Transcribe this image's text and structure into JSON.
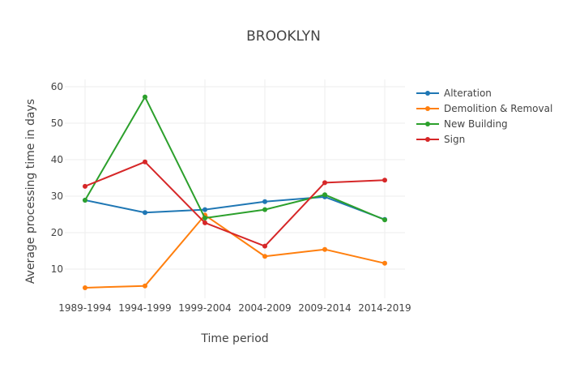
{
  "chart_data": {
    "type": "line",
    "title": "BROOKLYN",
    "xlabel": "Time period",
    "ylabel": "Average processing time in days",
    "categories": [
      "1989-1994",
      "1994-1999",
      "1999-2004",
      "2004-2009",
      "2009-2014",
      "2014-2019"
    ],
    "ylim": [
      2,
      62
    ],
    "yticks": [
      10,
      20,
      30,
      40,
      50,
      60
    ],
    "grid": true,
    "legend_position": "top-right",
    "series": [
      {
        "name": "Alteration",
        "color": "#1f77b4",
        "values": [
          28.9,
          25.5,
          26.3,
          28.5,
          29.8,
          23.6
        ]
      },
      {
        "name": "Demolition & Removal",
        "color": "#ff7f0e",
        "values": [
          4.9,
          5.4,
          24.8,
          13.5,
          15.4,
          11.6
        ]
      },
      {
        "name": "New Building",
        "color": "#2ca02c",
        "values": [
          28.9,
          57.2,
          24.0,
          26.3,
          30.4,
          23.5
        ]
      },
      {
        "name": "Sign",
        "color": "#d62728",
        "values": [
          32.7,
          39.4,
          22.7,
          16.3,
          33.7,
          34.4
        ]
      }
    ]
  }
}
